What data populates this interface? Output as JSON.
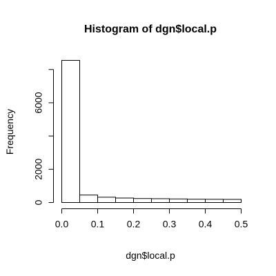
{
  "chart_data": {
    "type": "bar",
    "title": "Histogram of dgn$local.p",
    "xlabel": "dgn$local.p",
    "ylabel": "Frequency",
    "bins": [
      [
        0.0,
        0.05
      ],
      [
        0.05,
        0.1
      ],
      [
        0.1,
        0.15
      ],
      [
        0.15,
        0.2
      ],
      [
        0.2,
        0.25
      ],
      [
        0.25,
        0.3
      ],
      [
        0.3,
        0.35
      ],
      [
        0.35,
        0.4
      ],
      [
        0.4,
        0.45
      ],
      [
        0.45,
        0.5
      ]
    ],
    "values": [
      8550,
      450,
      320,
      270,
      240,
      230,
      215,
      200,
      195,
      190
    ],
    "xlim": [
      0.0,
      0.5
    ],
    "ylim": [
      0,
      8550
    ],
    "xticks": [
      "0.0",
      "0.1",
      "0.2",
      "0.3",
      "0.4",
      "0.5"
    ],
    "yticks": [
      "0",
      "2000",
      "6000"
    ],
    "grid": false
  }
}
